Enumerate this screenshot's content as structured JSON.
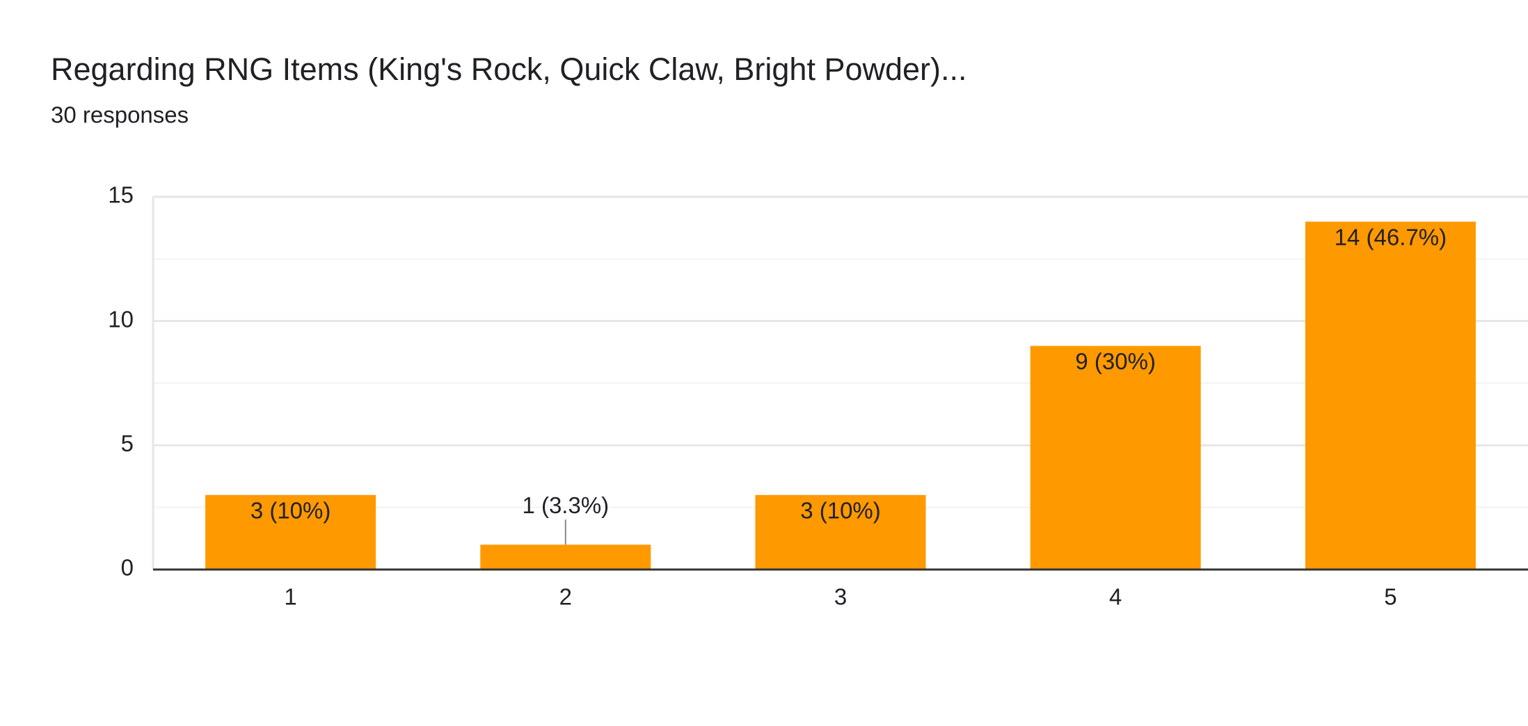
{
  "chart_data": {
    "type": "bar",
    "title": "Regarding RNG Items (King's Rock, Quick Claw, Bright Powder)...",
    "subtitle": "30 responses",
    "categories": [
      "1",
      "2",
      "3",
      "4",
      "5"
    ],
    "values": [
      3,
      1,
      3,
      9,
      14
    ],
    "value_labels": [
      "3 (10%)",
      "1 (3.3%)",
      "3 (10%)",
      "9 (30%)",
      "14 (46.7%)"
    ],
    "color": "#ff9900",
    "ylim": [
      0,
      15
    ],
    "yticks": [
      0,
      5,
      10,
      15
    ],
    "minor_yticks": [
      2.5,
      7.5,
      12.5
    ],
    "grid": true
  }
}
